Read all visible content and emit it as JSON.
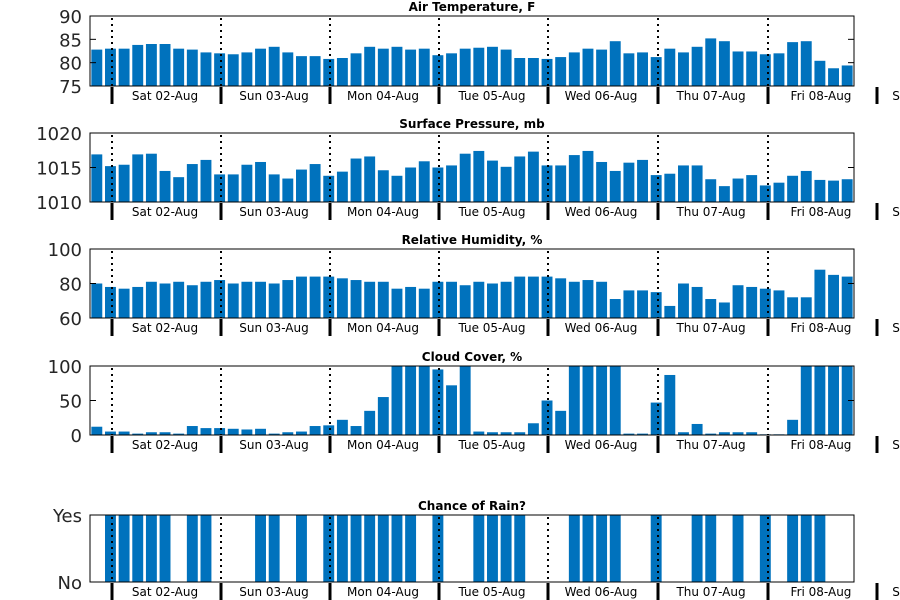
{
  "chart_data": [
    {
      "type": "bar",
      "title": "Air Temperature, F",
      "ylim": [
        75,
        90
      ],
      "yticks": [
        75,
        80,
        85,
        90
      ],
      "ytick_labels": [
        "75",
        "80",
        "85",
        "90"
      ],
      "day_labels": [
        "Sat 02-Aug",
        "Sun 03-Aug",
        "Mon 04-Aug",
        "Tue 05-Aug",
        "Wed 06-Aug",
        "Thu 07-Aug",
        "Fri 08-Aug",
        "S"
      ],
      "values": [
        82.8,
        83.0,
        83.0,
        83.8,
        84.0,
        84.0,
        83.0,
        82.8,
        82.2,
        82.0,
        81.8,
        82.2,
        83.0,
        83.4,
        82.2,
        81.4,
        81.4,
        80.8,
        81.0,
        82.0,
        83.4,
        83.0,
        83.4,
        82.8,
        83.0,
        81.6,
        82.0,
        83.0,
        83.2,
        83.4,
        82.8,
        81.0,
        81.0,
        80.8,
        81.2,
        82.2,
        83.0,
        82.8,
        84.6,
        82.0,
        82.2,
        81.2,
        83.0,
        82.2,
        83.4,
        85.2,
        84.6,
        82.4,
        82.4,
        81.8,
        82.0,
        84.4,
        84.6,
        80.4,
        78.8,
        79.4
      ],
      "grid": false
    },
    {
      "type": "bar",
      "title": "Surface Pressure, mb",
      "ylim": [
        1010,
        1020
      ],
      "yticks": [
        1010,
        1015,
        1020
      ],
      "ytick_labels": [
        "1010",
        "1015",
        "1020"
      ],
      "day_labels": [
        "Sat 02-Aug",
        "Sun 03-Aug",
        "Mon 04-Aug",
        "Tue 05-Aug",
        "Wed 06-Aug",
        "Thu 07-Aug",
        "Fri 08-Aug",
        "S"
      ],
      "values": [
        1016.9,
        1015.2,
        1015.4,
        1016.9,
        1017.0,
        1014.5,
        1013.6,
        1015.5,
        1016.1,
        1014.0,
        1014.0,
        1015.4,
        1015.8,
        1014.0,
        1013.4,
        1014.7,
        1015.5,
        1013.8,
        1014.4,
        1016.3,
        1016.6,
        1014.6,
        1013.8,
        1015.0,
        1015.9,
        1015.0,
        1015.3,
        1017.0,
        1017.4,
        1016.0,
        1015.1,
        1016.6,
        1017.3,
        1015.3,
        1015.3,
        1016.8,
        1017.4,
        1015.8,
        1014.5,
        1015.7,
        1016.1,
        1013.9,
        1014.1,
        1015.3,
        1015.3,
        1013.3,
        1012.3,
        1013.4,
        1013.9,
        1012.4,
        1012.8,
        1013.8,
        1014.5,
        1013.2,
        1013.1,
        1013.3
      ],
      "grid": false
    },
    {
      "type": "bar",
      "title": "Relative Humidity, %",
      "ylim": [
        60,
        100
      ],
      "yticks": [
        60,
        80,
        100
      ],
      "ytick_labels": [
        "60",
        "80",
        "100"
      ],
      "day_labels": [
        "Sat 02-Aug",
        "Sun 03-Aug",
        "Mon 04-Aug",
        "Tue 05-Aug",
        "Wed 06-Aug",
        "Thu 07-Aug",
        "Fri 08-Aug",
        "S"
      ],
      "values": [
        80,
        78,
        77,
        78,
        81,
        80,
        81,
        79,
        81,
        82,
        80,
        81,
        81,
        80,
        82,
        84,
        84,
        84,
        83,
        82,
        81,
        81,
        77,
        78,
        77,
        81,
        81,
        79,
        81,
        80,
        81,
        84,
        84,
        84,
        83,
        81,
        82,
        81,
        71,
        76,
        76,
        75,
        67,
        80,
        78,
        71,
        69,
        79,
        78,
        77,
        76,
        72,
        72,
        88,
        85,
        84
      ],
      "grid": false
    },
    {
      "type": "bar",
      "title": "Cloud Cover, %",
      "ylim": [
        0,
        100
      ],
      "yticks": [
        0,
        50,
        100
      ],
      "ytick_labels": [
        "0",
        "50",
        "100"
      ],
      "day_labels": [
        "Sat 02-Aug",
        "Sun 03-Aug",
        "Mon 04-Aug",
        "Tue 05-Aug",
        "Wed 06-Aug",
        "Thu 07-Aug",
        "Fri 08-Aug",
        "S"
      ],
      "values": [
        12,
        5,
        5,
        2,
        4,
        4,
        2,
        13,
        10,
        10,
        9,
        8,
        9,
        2,
        4,
        5,
        13,
        14,
        22,
        13,
        35,
        55,
        100,
        100,
        100,
        95,
        72,
        100,
        5,
        4,
        4,
        4,
        17,
        50,
        35,
        100,
        100,
        100,
        100,
        2,
        2,
        47,
        87,
        4,
        16,
        2,
        4,
        4,
        4,
        1,
        1,
        22,
        100,
        100,
        100,
        100
      ],
      "grid": false
    },
    {
      "type": "bar",
      "title": "Chance of Rain?",
      "ylim": [
        0,
        1
      ],
      "yticks": [
        0,
        1
      ],
      "ytick_labels": [
        "No",
        "Yes"
      ],
      "day_labels": [
        "Sat 02-Aug",
        "Sun 03-Aug",
        "Mon 04-Aug",
        "Tue 05-Aug",
        "Wed 06-Aug",
        "Thu 07-Aug",
        "Fri 08-Aug",
        "S"
      ],
      "values": [
        0,
        1,
        1,
        1,
        1,
        1,
        0,
        1,
        1,
        0,
        0,
        0,
        1,
        1,
        0,
        1,
        0,
        1,
        1,
        1,
        1,
        1,
        1,
        1,
        0,
        1,
        0,
        0,
        1,
        1,
        1,
        1,
        0,
        0,
        0,
        1,
        1,
        1,
        1,
        0,
        0,
        1,
        0,
        0,
        1,
        1,
        0,
        1,
        0,
        1,
        0,
        1,
        1,
        1,
        0,
        0
      ],
      "grid": false
    }
  ],
  "colors": {
    "bar": "#0072BD",
    "axes": "#000000"
  }
}
